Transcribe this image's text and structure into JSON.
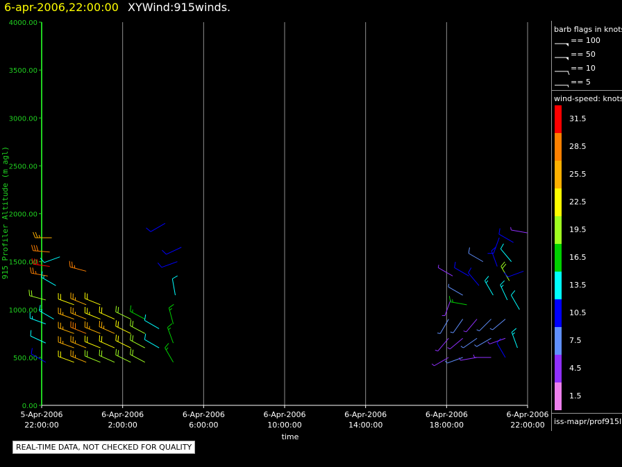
{
  "title": {
    "time": "6-apr-2006,22:00:00",
    "name": "XYWind:915winds."
  },
  "quality_note": "REAL-TIME DATA, NOT CHECKED FOR QUALITY",
  "legend": {
    "barb_title": "barb flags in knots",
    "barbs": [
      {
        "label": "== 100",
        "kind": "flag"
      },
      {
        "label": "== 50",
        "kind": "flag"
      },
      {
        "label": "== 10",
        "kind": "barb"
      },
      {
        "label": "== 5",
        "kind": "half"
      }
    ],
    "speed_title": "wind-speed: knots",
    "speed_levels": [
      {
        "label": "31.5",
        "color": "#ff0000"
      },
      {
        "label": "28.5",
        "color": "#ff8000"
      },
      {
        "label": "25.5",
        "color": "#ffb000"
      },
      {
        "label": "22.5",
        "color": "#ffff00"
      },
      {
        "label": "19.5",
        "color": "#a0ff20"
      },
      {
        "label": "16.5",
        "color": "#00d000"
      },
      {
        "label": "13.5",
        "color": "#00ffff"
      },
      {
        "label": "10.5",
        "color": "#0000ff"
      },
      {
        "label": "7.5",
        "color": "#6090ff"
      },
      {
        "label": "4.5",
        "color": "#9030ff"
      },
      {
        "label": "1.5",
        "color": "#ee80ee"
      }
    ],
    "footer": "iss-mapr/prof915l"
  },
  "chart_data": {
    "type": "scatter",
    "ylabel": "915 Profiler Altitude (m agl)",
    "xlabel": "time",
    "ylim": [
      0,
      4000
    ],
    "xlim_hours": [
      0,
      24
    ],
    "y_ticks": [
      "0.00",
      "500.00",
      "1000.00",
      "1500.00",
      "2000.00",
      "2500.00",
      "3000.00",
      "3500.00",
      "4000.00"
    ],
    "x_ticks": [
      {
        "hour": 0,
        "date": "5-Apr-2006",
        "time": "22:00:00"
      },
      {
        "hour": 4,
        "date": "6-Apr-2006",
        "time": "2:00:00"
      },
      {
        "hour": 8,
        "date": "6-Apr-2006",
        "time": "6:00:00"
      },
      {
        "hour": 12,
        "date": "6-Apr-2006",
        "time": "10:00:00"
      },
      {
        "hour": 16,
        "date": "6-Apr-2006",
        "time": "14:00:00"
      },
      {
        "hour": 20,
        "date": "6-Apr-2006",
        "time": "18:00:00"
      },
      {
        "hour": 24,
        "date": "6-Apr-2006",
        "time": "22:00:00"
      }
    ],
    "grid_vertical": true,
    "barbs": [
      {
        "hour": 0.2,
        "altitude": 450,
        "speed": 9,
        "direction": 300
      },
      {
        "hour": 0.2,
        "altitude": 650,
        "speed": 12,
        "direction": 295
      },
      {
        "hour": 0.2,
        "altitude": 850,
        "speed": 14,
        "direction": 290
      },
      {
        "hour": 0.2,
        "altitude": 1100,
        "speed": 20,
        "direction": 285
      },
      {
        "hour": 0.3,
        "altitude": 1350,
        "speed": 27,
        "direction": 280
      },
      {
        "hour": 0.4,
        "altitude": 1450,
        "speed": 31,
        "direction": 278
      },
      {
        "hour": 0.4,
        "altitude": 1600,
        "speed": 28,
        "direction": 275
      },
      {
        "hour": 0.5,
        "altitude": 1750,
        "speed": 24,
        "direction": 270
      },
      {
        "hour": 0.6,
        "altitude": 900,
        "speed": 13,
        "direction": 300
      },
      {
        "hour": 0.7,
        "altitude": 1250,
        "speed": 14,
        "direction": 300
      },
      {
        "hour": 0.9,
        "altitude": 1550,
        "speed": 12,
        "direction": 250
      },
      {
        "hour": 1.6,
        "altitude": 450,
        "speed": 22,
        "direction": 290
      },
      {
        "hour": 1.6,
        "altitude": 600,
        "speed": 24,
        "direction": 290
      },
      {
        "hour": 1.6,
        "altitude": 750,
        "speed": 26,
        "direction": 290
      },
      {
        "hour": 1.6,
        "altitude": 900,
        "speed": 24,
        "direction": 290
      },
      {
        "hour": 1.6,
        "altitude": 1050,
        "speed": 22,
        "direction": 290
      },
      {
        "hour": 2.2,
        "altitude": 450,
        "speed": 24,
        "direction": 292
      },
      {
        "hour": 2.2,
        "altitude": 600,
        "speed": 26,
        "direction": 292
      },
      {
        "hour": 2.2,
        "altitude": 750,
        "speed": 28,
        "direction": 292
      },
      {
        "hour": 2.2,
        "altitude": 900,
        "speed": 26,
        "direction": 292
      },
      {
        "hour": 2.2,
        "altitude": 1050,
        "speed": 24,
        "direction": 292
      },
      {
        "hour": 2.2,
        "altitude": 1400,
        "speed": 27,
        "direction": 285
      },
      {
        "hour": 2.9,
        "altitude": 450,
        "speed": 18,
        "direction": 292
      },
      {
        "hour": 2.9,
        "altitude": 600,
        "speed": 22,
        "direction": 292
      },
      {
        "hour": 2.9,
        "altitude": 750,
        "speed": 24,
        "direction": 292
      },
      {
        "hour": 2.9,
        "altitude": 900,
        "speed": 23,
        "direction": 292
      },
      {
        "hour": 2.9,
        "altitude": 1050,
        "speed": 21,
        "direction": 292
      },
      {
        "hour": 3.6,
        "altitude": 450,
        "speed": 19,
        "direction": 294
      },
      {
        "hour": 3.6,
        "altitude": 600,
        "speed": 22,
        "direction": 294
      },
      {
        "hour": 3.6,
        "altitude": 750,
        "speed": 24,
        "direction": 294
      },
      {
        "hour": 3.6,
        "altitude": 900,
        "speed": 22,
        "direction": 294
      },
      {
        "hour": 4.4,
        "altitude": 450,
        "speed": 20,
        "direction": 296
      },
      {
        "hour": 4.4,
        "altitude": 600,
        "speed": 22,
        "direction": 296
      },
      {
        "hour": 4.4,
        "altitude": 750,
        "speed": 21,
        "direction": 296
      },
      {
        "hour": 4.4,
        "altitude": 900,
        "speed": 20,
        "direction": 296
      },
      {
        "hour": 5.1,
        "altitude": 450,
        "speed": 18,
        "direction": 298
      },
      {
        "hour": 5.1,
        "altitude": 600,
        "speed": 19,
        "direction": 298
      },
      {
        "hour": 5.1,
        "altitude": 750,
        "speed": 18,
        "direction": 298
      },
      {
        "hour": 5.1,
        "altitude": 900,
        "speed": 17,
        "direction": 298
      },
      {
        "hour": 5.8,
        "altitude": 600,
        "speed": 12,
        "direction": 300
      },
      {
        "hour": 5.8,
        "altitude": 800,
        "speed": 12,
        "direction": 300
      },
      {
        "hour": 6.1,
        "altitude": 1900,
        "speed": 11,
        "direction": 240
      },
      {
        "hour": 6.5,
        "altitude": 450,
        "speed": 17,
        "direction": 330
      },
      {
        "hour": 6.5,
        "altitude": 650,
        "speed": 16,
        "direction": 340
      },
      {
        "hour": 6.5,
        "altitude": 850,
        "speed": 15,
        "direction": 345
      },
      {
        "hour": 6.6,
        "altitude": 1150,
        "speed": 12,
        "direction": 350
      },
      {
        "hour": 6.7,
        "altitude": 1500,
        "speed": 10,
        "direction": 250
      },
      {
        "hour": 6.9,
        "altitude": 1650,
        "speed": 9,
        "direction": 245
      },
      {
        "hour": 20.1,
        "altitude": 500,
        "speed": 5,
        "direction": 240
      },
      {
        "hour": 20.1,
        "altitude": 700,
        "speed": 5,
        "direction": 220
      },
      {
        "hour": 20.1,
        "altitude": 900,
        "speed": 6,
        "direction": 210
      },
      {
        "hour": 20.2,
        "altitude": 1100,
        "speed": 4,
        "direction": 200
      },
      {
        "hour": 20.3,
        "altitude": 1350,
        "speed": 5,
        "direction": 300
      },
      {
        "hour": 20.8,
        "altitude": 500,
        "speed": 6,
        "direction": 250
      },
      {
        "hour": 20.8,
        "altitude": 700,
        "speed": 5,
        "direction": 230
      },
      {
        "hour": 20.8,
        "altitude": 900,
        "speed": 6,
        "direction": 215
      },
      {
        "hour": 20.8,
        "altitude": 1150,
        "speed": 7,
        "direction": 300
      },
      {
        "hour": 21.0,
        "altitude": 1050,
        "speed": 16,
        "direction": 280
      },
      {
        "hour": 21.1,
        "altitude": 1350,
        "speed": 10,
        "direction": 300
      },
      {
        "hour": 21.5,
        "altitude": 500,
        "speed": 4,
        "direction": 260
      },
      {
        "hour": 21.5,
        "altitude": 700,
        "speed": 6,
        "direction": 235
      },
      {
        "hour": 21.5,
        "altitude": 900,
        "speed": 5,
        "direction": 220
      },
      {
        "hour": 21.6,
        "altitude": 1250,
        "speed": 9,
        "direction": 320
      },
      {
        "hour": 21.8,
        "altitude": 1500,
        "speed": 8,
        "direction": 300
      },
      {
        "hour": 22.2,
        "altitude": 500,
        "speed": 4,
        "direction": 270
      },
      {
        "hour": 22.2,
        "altitude": 700,
        "speed": 7,
        "direction": 240
      },
      {
        "hour": 22.2,
        "altitude": 900,
        "speed": 6,
        "direction": 225
      },
      {
        "hour": 22.3,
        "altitude": 1150,
        "speed": 14,
        "direction": 330
      },
      {
        "hour": 22.5,
        "altitude": 1450,
        "speed": 11,
        "direction": 340
      },
      {
        "hour": 22.6,
        "altitude": 1750,
        "speed": 9,
        "direction": 200
      },
      {
        "hour": 22.9,
        "altitude": 500,
        "speed": 9,
        "direction": 330
      },
      {
        "hour": 22.9,
        "altitude": 700,
        "speed": 5,
        "direction": 250
      },
      {
        "hour": 22.9,
        "altitude": 900,
        "speed": 6,
        "direction": 230
      },
      {
        "hour": 23.0,
        "altitude": 1100,
        "speed": 13,
        "direction": 335
      },
      {
        "hour": 23.1,
        "altitude": 1300,
        "speed": 19,
        "direction": 330
      },
      {
        "hour": 23.2,
        "altitude": 1500,
        "speed": 12,
        "direction": 320
      },
      {
        "hour": 23.3,
        "altitude": 1700,
        "speed": 10,
        "direction": 300
      },
      {
        "hour": 23.5,
        "altitude": 600,
        "speed": 13,
        "direction": 340
      },
      {
        "hour": 23.6,
        "altitude": 1000,
        "speed": 12,
        "direction": 330
      },
      {
        "hour": 23.8,
        "altitude": 1400,
        "speed": 11,
        "direction": 250
      },
      {
        "hour": 24.0,
        "altitude": 1800,
        "speed": 5,
        "direction": 280
      }
    ]
  }
}
